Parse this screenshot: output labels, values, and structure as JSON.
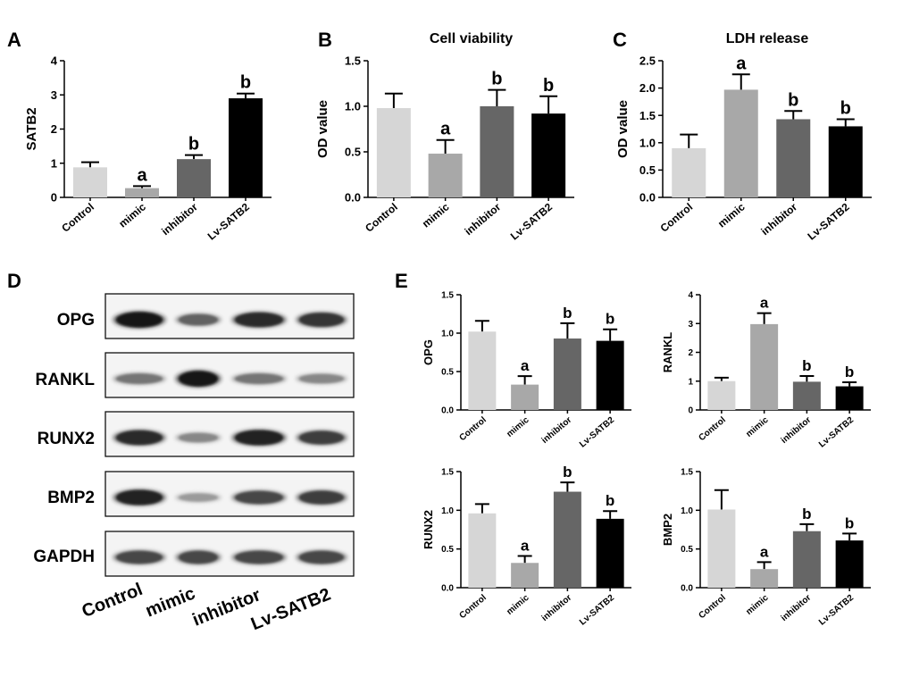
{
  "panels": {
    "A": "A",
    "B": "B",
    "C": "C",
    "D": "D",
    "E": "E"
  },
  "western_blot": {
    "rows": [
      "OPG",
      "RANKL",
      "RUNX2",
      "BMP2",
      "GAPDH"
    ],
    "lanes": [
      "Control",
      "mimic",
      "inhibitor",
      "Lv-SATB2"
    ],
    "band_intensity": [
      [
        0.95,
        0.55,
        0.85,
        0.8
      ],
      [
        0.45,
        0.95,
        0.45,
        0.35
      ],
      [
        0.85,
        0.35,
        0.9,
        0.75
      ],
      [
        0.9,
        0.25,
        0.7,
        0.75
      ],
      [
        0.7,
        0.7,
        0.7,
        0.7
      ]
    ]
  },
  "colors": {
    "bars": [
      "#d6d6d6",
      "#a8a8a8",
      "#666666",
      "#000000"
    ]
  },
  "chart_data": [
    {
      "id": "A",
      "type": "bar",
      "title": "",
      "xlabel": "",
      "ylabel": "SATB2",
      "categories": [
        "Control",
        "mimic",
        "inhibitor",
        "Lv-SATB2"
      ],
      "values": [
        0.88,
        0.27,
        1.12,
        2.9
      ],
      "errors": [
        0.15,
        0.06,
        0.12,
        0.14
      ],
      "annotations": [
        "",
        "a",
        "b",
        "b"
      ],
      "ylim": [
        0,
        4
      ],
      "ticks": [
        "0",
        "1",
        "2",
        "3",
        "4"
      ],
      "grid": false
    },
    {
      "id": "B",
      "type": "bar",
      "title": "Cell viability",
      "xlabel": "",
      "ylabel": "OD value",
      "categories": [
        "Control",
        "mimic",
        "inhibitor",
        "Lv-SATB2"
      ],
      "values": [
        0.98,
        0.48,
        1.0,
        0.92
      ],
      "errors": [
        0.16,
        0.15,
        0.18,
        0.19
      ],
      "annotations": [
        "",
        "a",
        "b",
        "b"
      ],
      "ylim": [
        0,
        1.5
      ],
      "ticks": [
        "0.0",
        "0.5",
        "1.0",
        "1.5"
      ],
      "grid": false
    },
    {
      "id": "C",
      "type": "bar",
      "title": "LDH release",
      "xlabel": "",
      "ylabel": "OD value",
      "categories": [
        "Control",
        "mimic",
        "inhibitor",
        "Lv-SATB2"
      ],
      "values": [
        0.9,
        1.97,
        1.43,
        1.3
      ],
      "errors": [
        0.25,
        0.28,
        0.15,
        0.13
      ],
      "annotations": [
        "",
        "a",
        "b",
        "b"
      ],
      "ylim": [
        0,
        2.5
      ],
      "ticks": [
        "0.0",
        "0.5",
        "1.0",
        "1.5",
        "2.0",
        "2.5"
      ],
      "grid": false
    },
    {
      "id": "E1",
      "type": "bar",
      "title": "",
      "xlabel": "",
      "ylabel": "OPG",
      "categories": [
        "Control",
        "mimic",
        "inhibitor",
        "Lv-SATB2"
      ],
      "values": [
        1.02,
        0.33,
        0.93,
        0.9
      ],
      "errors": [
        0.14,
        0.11,
        0.2,
        0.15
      ],
      "annotations": [
        "",
        "a",
        "b",
        "b"
      ],
      "ylim": [
        0,
        1.5
      ],
      "ticks": [
        "0.0",
        "0.5",
        "1.0",
        "1.5"
      ],
      "grid": false
    },
    {
      "id": "E2",
      "type": "bar",
      "title": "",
      "xlabel": "",
      "ylabel": "RANKL",
      "categories": [
        "Control",
        "mimic",
        "inhibitor",
        "Lv-SATB2"
      ],
      "values": [
        1.0,
        2.98,
        0.98,
        0.82
      ],
      "errors": [
        0.12,
        0.38,
        0.2,
        0.14
      ],
      "annotations": [
        "",
        "a",
        "b",
        "b"
      ],
      "ylim": [
        0,
        4
      ],
      "ticks": [
        "0",
        "1",
        "2",
        "3",
        "4"
      ],
      "grid": false
    },
    {
      "id": "E3",
      "type": "bar",
      "title": "",
      "xlabel": "",
      "ylabel": "RUNX2",
      "categories": [
        "Control",
        "mimic",
        "inhibitor",
        "Lv-SATB2"
      ],
      "values": [
        0.96,
        0.32,
        1.24,
        0.89
      ],
      "errors": [
        0.12,
        0.09,
        0.12,
        0.1
      ],
      "annotations": [
        "",
        "a",
        "b",
        "b"
      ],
      "ylim": [
        0,
        1.5
      ],
      "ticks": [
        "0.0",
        "0.5",
        "1.0",
        "1.5"
      ],
      "grid": false
    },
    {
      "id": "E4",
      "type": "bar",
      "title": "",
      "xlabel": "",
      "ylabel": "BMP2",
      "categories": [
        "Control",
        "mimic",
        "inhibitor",
        "Lv-SATB2"
      ],
      "values": [
        1.01,
        0.24,
        0.73,
        0.61
      ],
      "errors": [
        0.25,
        0.09,
        0.09,
        0.09
      ],
      "annotations": [
        "",
        "a",
        "b",
        "b"
      ],
      "ylim": [
        0,
        1.5
      ],
      "ticks": [
        "0.0",
        "0.5",
        "1.0",
        "1.5"
      ],
      "grid": false
    }
  ]
}
